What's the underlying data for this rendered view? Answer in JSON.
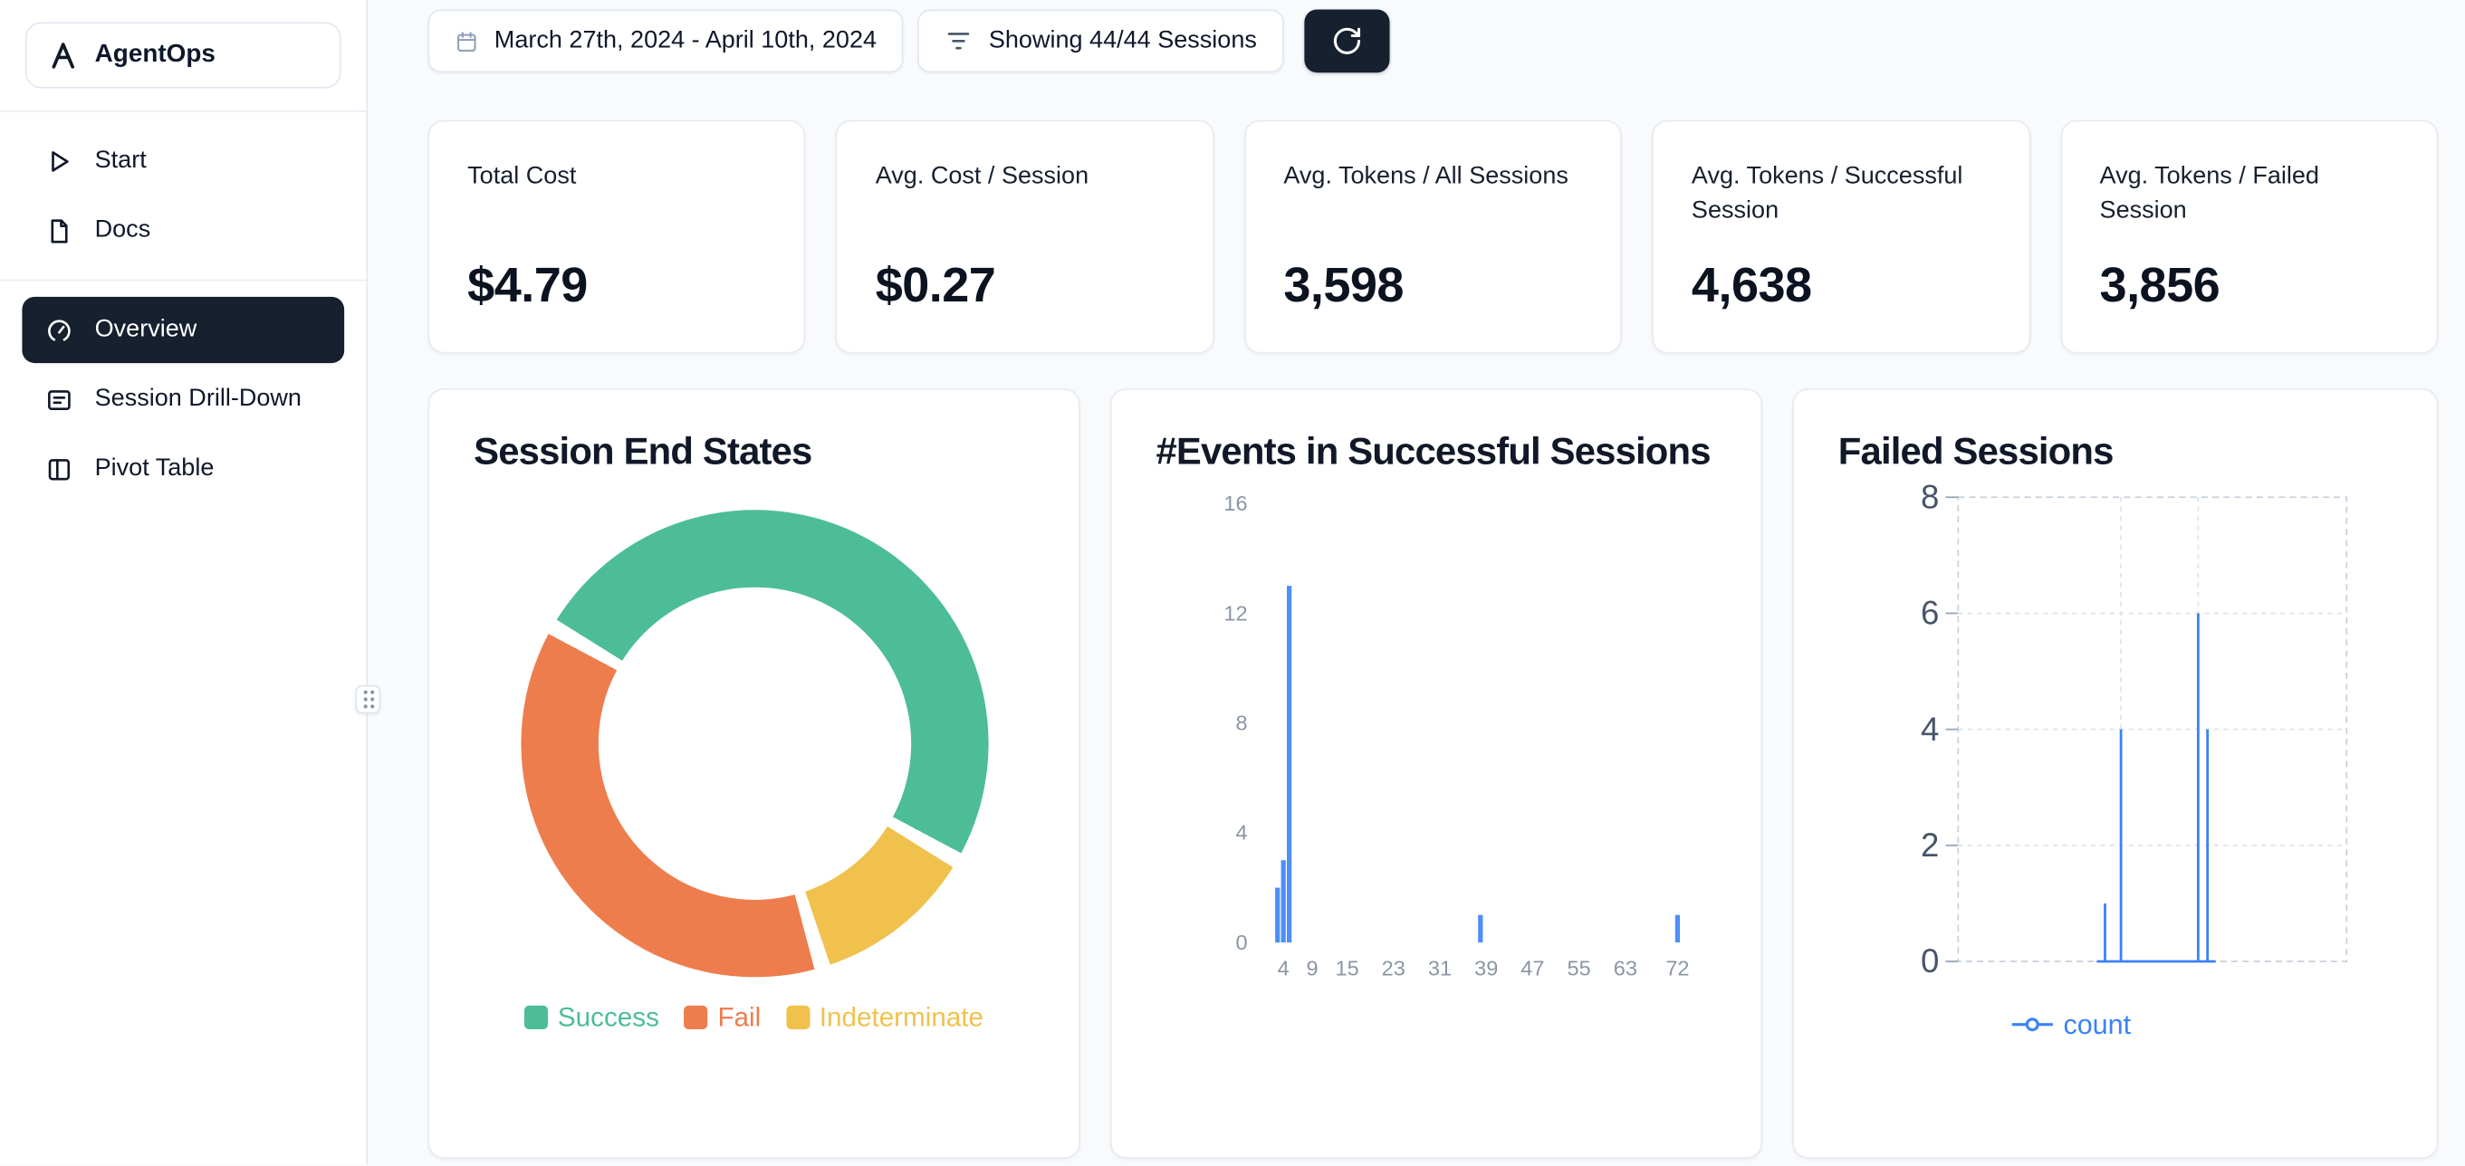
{
  "app": {
    "name": "AgentOps"
  },
  "colors": {
    "accent_dark": "#16202e",
    "background": "#f8fafc",
    "success_green": "#4dbd98",
    "fail_orange": "#ee7d4e",
    "indeterminate_yellow": "#f0c14d",
    "bar_blue": "#4d8ef7",
    "count_blue": "#3b82f6"
  },
  "sidebar": {
    "logo_label": "AgentOps",
    "logo_icon": "agentops-logo-icon",
    "top_items": [
      {
        "label": "Start",
        "icon": "play-icon"
      },
      {
        "label": "Docs",
        "icon": "docs-icon"
      }
    ],
    "main_items": [
      {
        "label": "Overview",
        "icon": "gauge-icon",
        "active": true
      },
      {
        "label": "Session Drill-Down",
        "icon": "drilldown-icon",
        "active": false
      },
      {
        "label": "Pivot Table",
        "icon": "pivot-table-icon",
        "active": false
      }
    ]
  },
  "topbar": {
    "date_range": "March 27th, 2024 - April 10th, 2024",
    "date_icon": "calendar-icon",
    "filter_label": "Showing 44/44 Sessions",
    "filter_icon": "filter-icon",
    "refresh_icon": "refresh-icon"
  },
  "stats": [
    {
      "label": "Total Cost",
      "value": "$4.79"
    },
    {
      "label": "Avg. Cost / Session",
      "value": "$0.27"
    },
    {
      "label": "Avg. Tokens / All Sessions",
      "value": "3,598"
    },
    {
      "label": "Avg. Tokens / Successful Session",
      "value": "4,638"
    },
    {
      "label": "Avg. Tokens / Failed Session",
      "value": "3,856"
    }
  ],
  "chart_data": [
    {
      "type": "pie",
      "title": "Session End States",
      "donut": true,
      "unit": "percent",
      "start_angle_deg": 300,
      "draw_sequence": [
        0,
        2,
        1
      ],
      "slices": [
        {
          "label": "Success",
          "value": 50,
          "color": "#4dbd98"
        },
        {
          "label": "Fail",
          "value": 38,
          "color": "#ee7d4e"
        },
        {
          "label": "Indeterminate",
          "value": 12,
          "color": "#f0c14d"
        }
      ],
      "legend_position": "bottom"
    },
    {
      "type": "bar",
      "title": "#Events in Successful Sessions",
      "xlabel": "",
      "ylabel": "",
      "ylim": [
        0,
        16
      ],
      "xlim": [
        0,
        76
      ],
      "yticks": [
        0,
        4,
        8,
        12,
        16
      ],
      "xticks": [
        4,
        9,
        15,
        23,
        31,
        39,
        47,
        55,
        63,
        72
      ],
      "bar_color": "#4d8ef7",
      "bars": [
        {
          "x": 3,
          "count": 2
        },
        {
          "x": 4,
          "count": 3
        },
        {
          "x": 5,
          "count": 13
        },
        {
          "x": 38,
          "count": 1
        },
        {
          "x": 72,
          "count": 1
        }
      ],
      "grid": "off",
      "legend_position": "none"
    },
    {
      "type": "line",
      "title": "Failed Sessions",
      "ylim": [
        0,
        8
      ],
      "yticks": [
        0,
        2,
        4,
        6,
        8
      ],
      "grid": "dashed",
      "grid_x": [
        0.419,
        0.618
      ],
      "legend": [
        "count"
      ],
      "legend_position": "bottom",
      "series": [
        {
          "name": "count",
          "color": "#3b82f6",
          "baseline_x": [
            0.357,
            0.663
          ],
          "spikes": [
            {
              "x": 0.378,
              "y": 1
            },
            {
              "x": 0.419,
              "y": 4
            },
            {
              "x": 0.618,
              "y": 6
            },
            {
              "x": 0.642,
              "y": 4
            }
          ]
        }
      ]
    }
  ]
}
